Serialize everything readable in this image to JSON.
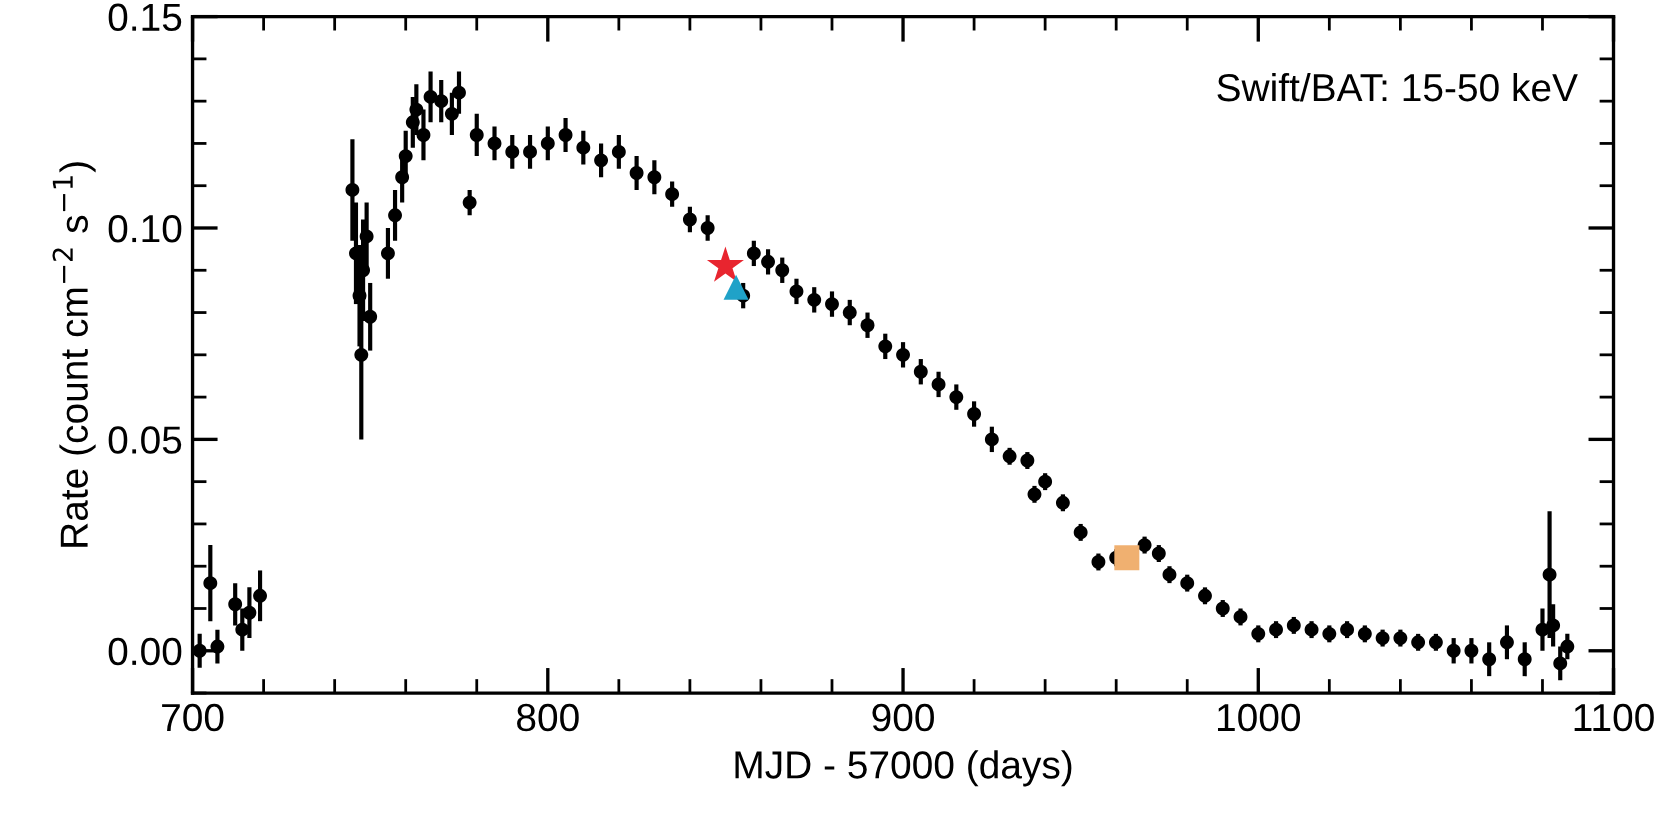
{
  "chart_data": {
    "type": "scatter",
    "xlabel": "MJD - 57000 (days)",
    "ylabel": "Rate (count cm$^{−2}$ s$^{−1}$)",
    "annotations": [
      "Swift/BAT: 15-50 keV"
    ],
    "xlim": [
      700,
      1100
    ],
    "xticks": [
      700,
      800,
      900,
      1000,
      1100
    ],
    "ylim": [
      -0.01,
      0.15
    ],
    "yticks": [
      {
        "value": 0,
        "label": "0.00"
      },
      {
        "value": 0.05,
        "label": "0.05"
      },
      {
        "value": 0.1,
        "label": "0.10"
      },
      {
        "value": 0.15,
        "label": "0.15"
      }
    ],
    "grid": false,
    "series": [
      {
        "color": "#000000",
        "marker": "circle",
        "x": [
          702,
          705,
          707,
          712,
          714,
          716,
          719,
          745,
          746,
          747,
          747.5,
          748,
          749,
          750,
          755,
          757,
          759,
          760,
          762,
          763,
          765,
          767,
          770,
          773,
          775,
          778,
          780,
          785,
          790,
          795,
          800,
          805,
          810,
          815,
          820,
          825,
          830,
          835,
          840,
          845,
          855,
          858,
          862,
          866,
          870,
          875,
          880,
          885,
          890,
          895,
          900,
          905,
          910,
          915,
          920,
          925,
          930,
          935,
          937,
          940,
          945,
          950,
          955,
          960,
          968,
          972,
          975,
          980,
          985,
          990,
          995,
          1000,
          1005,
          1010,
          1015,
          1020,
          1025,
          1030,
          1035,
          1040,
          1045,
          1050,
          1055,
          1060,
          1065,
          1070,
          1075,
          1080,
          1082,
          1083,
          1085,
          1087
        ],
        "values": [
          0.0,
          0.016,
          0.001,
          0.011,
          0.005,
          0.009,
          0.013,
          0.109,
          0.094,
          0.084,
          0.07,
          0.09,
          0.098,
          0.079,
          0.094,
          0.103,
          0.112,
          0.117,
          0.125,
          0.128,
          0.122,
          0.131,
          0.13,
          0.127,
          0.132,
          0.106,
          0.122,
          0.12,
          0.118,
          0.118,
          0.12,
          0.122,
          0.119,
          0.116,
          0.118,
          0.113,
          0.112,
          0.108,
          0.102,
          0.1,
          0.084,
          0.094,
          0.092,
          0.09,
          0.085,
          0.083,
          0.082,
          0.08,
          0.077,
          0.072,
          0.07,
          0.066,
          0.063,
          0.06,
          0.056,
          0.05,
          0.046,
          0.045,
          0.037,
          0.04,
          0.035,
          0.028,
          0.021,
          0.022,
          0.025,
          0.023,
          0.018,
          0.016,
          0.013,
          0.01,
          0.008,
          0.004,
          0.005,
          0.006,
          0.005,
          0.004,
          0.005,
          0.004,
          0.003,
          0.003,
          0.002,
          0.002,
          0.0,
          0.0,
          -0.002,
          0.002,
          -0.002,
          0.005,
          0.018,
          0.006,
          -0.003,
          0.001
        ],
        "errors": [
          0.004,
          0.009,
          0.004,
          0.005,
          0.005,
          0.006,
          0.006,
          0.012,
          0.012,
          0.012,
          0.02,
          0.012,
          0.008,
          0.008,
          0.006,
          0.006,
          0.006,
          0.006,
          0.006,
          0.006,
          0.006,
          0.006,
          0.005,
          0.005,
          0.005,
          0.003,
          0.005,
          0.004,
          0.004,
          0.004,
          0.004,
          0.004,
          0.004,
          0.004,
          0.004,
          0.004,
          0.004,
          0.003,
          0.003,
          0.003,
          0.003,
          0.003,
          0.003,
          0.003,
          0.003,
          0.003,
          0.003,
          0.003,
          0.003,
          0.003,
          0.003,
          0.003,
          0.003,
          0.003,
          0.003,
          0.003,
          0.002,
          0.002,
          0.002,
          0.002,
          0.002,
          0.002,
          0.002,
          0.002,
          0.002,
          0.002,
          0.002,
          0.002,
          0.002,
          0.002,
          0.002,
          0.002,
          0.002,
          0.002,
          0.002,
          0.002,
          0.002,
          0.002,
          0.002,
          0.002,
          0.002,
          0.002,
          0.003,
          0.003,
          0.004,
          0.004,
          0.004,
          0.005,
          0.015,
          0.005,
          0.004,
          0.003
        ]
      },
      {
        "color": "#e8252f",
        "marker": "star",
        "x": [
          850
        ],
        "values": [
          0.091
        ]
      },
      {
        "color": "#1fa2c8",
        "marker": "triangle",
        "x": [
          853
        ],
        "values": [
          0.086
        ]
      },
      {
        "color": "#f0b070",
        "marker": "square",
        "x": [
          963
        ],
        "values": [
          0.022
        ]
      }
    ]
  }
}
